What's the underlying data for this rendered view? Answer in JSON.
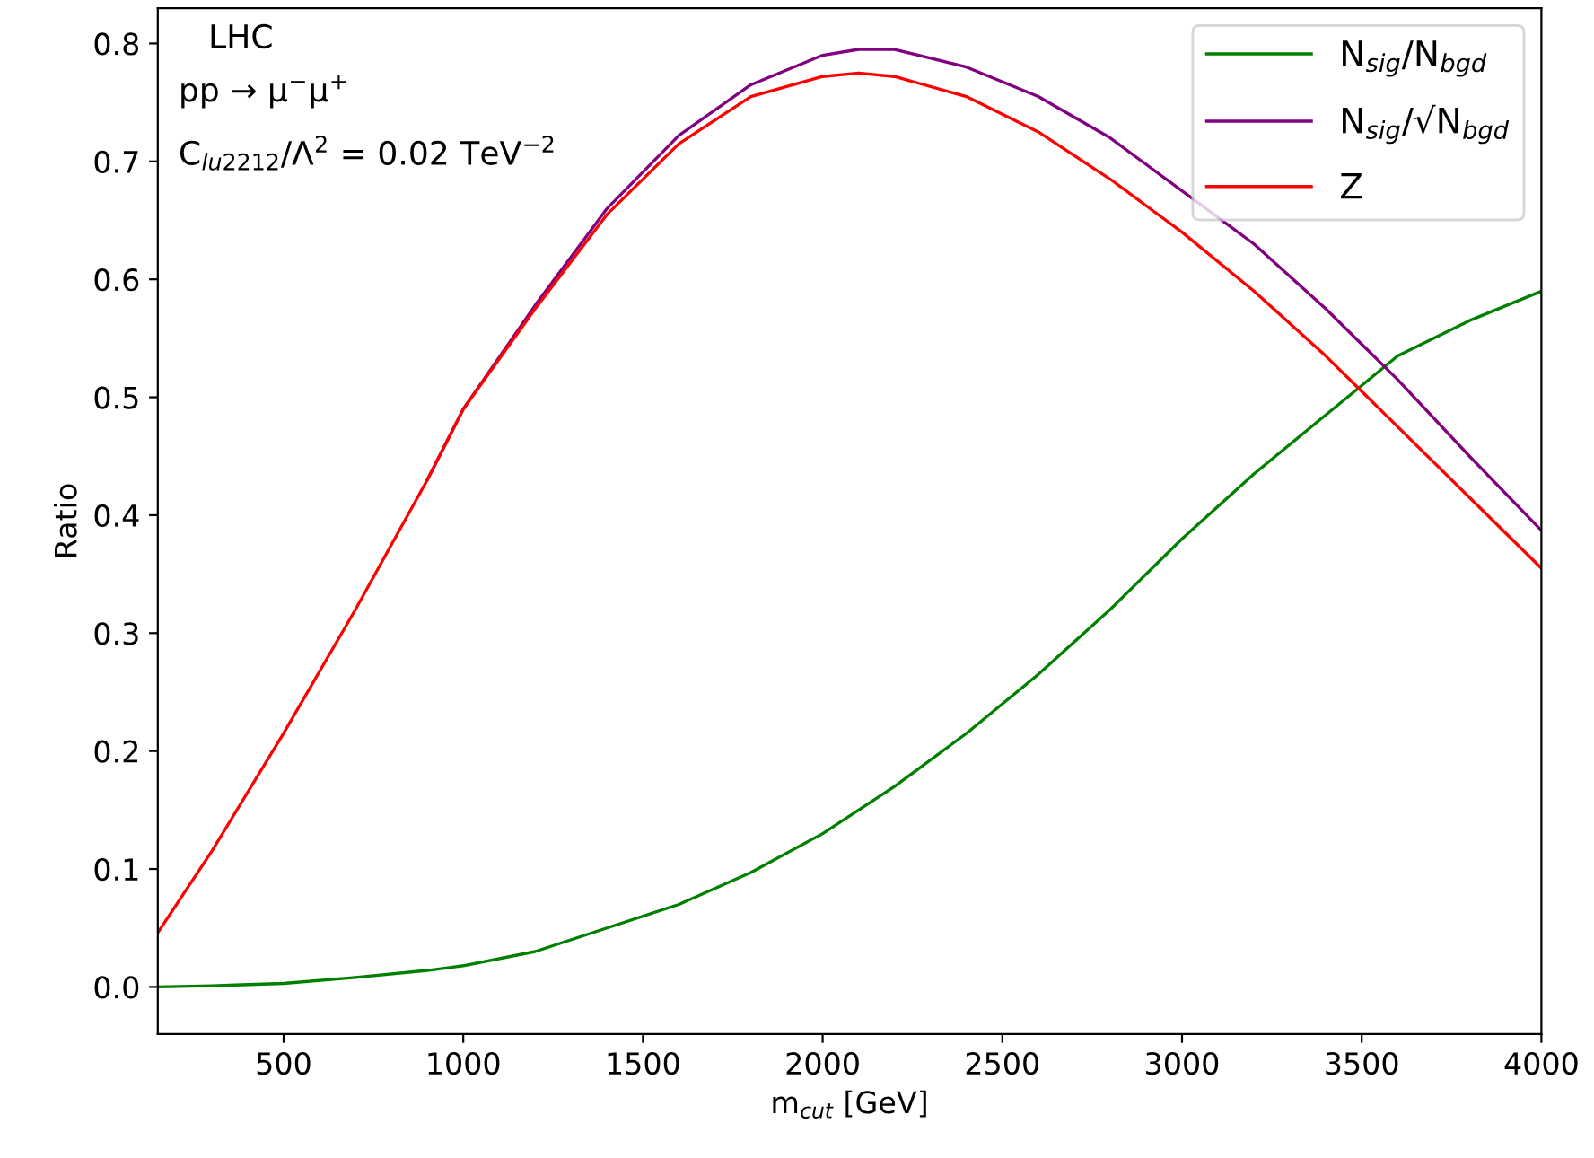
{
  "chart_data": {
    "type": "line",
    "xlabel": "m$_{cut}$ [GeV]",
    "ylabel": "Ratio",
    "annotations": [
      "LHC",
      "pp → μ$^{−}$μ$^{+}$",
      "C$_{lu2212}$/Λ$^{2}$ = 0.02 TeV$^{−2}$"
    ],
    "x": [
      150,
      300,
      500,
      700,
      900,
      1000,
      1200,
      1400,
      1600,
      1800,
      2000,
      2100,
      2200,
      2400,
      2600,
      2800,
      3000,
      3200,
      3400,
      3500,
      3600,
      3800,
      4000
    ],
    "series": [
      {
        "name": "N$_{sig}$/N$_{bgd}$",
        "color": "#008000",
        "values": [
          0.0,
          0.001,
          0.003,
          0.008,
          0.014,
          0.018,
          0.03,
          0.05,
          0.07,
          0.097,
          0.13,
          0.15,
          0.17,
          0.215,
          0.265,
          0.32,
          0.38,
          0.435,
          0.485,
          0.51,
          0.535,
          0.565,
          0.59
        ]
      },
      {
        "name": "N$_{sig}$/√N$_{bgd}$",
        "color": "#800080",
        "values": [
          null,
          null,
          null,
          null,
          0.43,
          0.49,
          0.578,
          0.66,
          0.722,
          0.765,
          0.79,
          0.795,
          0.795,
          0.78,
          0.755,
          0.72,
          0.675,
          0.63,
          0.575,
          0.545,
          0.515,
          0.45,
          0.387
        ]
      },
      {
        "name": "Z",
        "color": "#ff0000",
        "values": [
          0.046,
          0.115,
          0.215,
          0.32,
          0.43,
          0.49,
          0.575,
          0.655,
          0.715,
          0.755,
          0.772,
          0.775,
          0.772,
          0.755,
          0.725,
          0.685,
          0.64,
          0.59,
          0.535,
          0.505,
          0.475,
          0.415,
          0.355
        ]
      }
    ],
    "xlim": [
      150,
      4000
    ],
    "ylim": [
      -0.04,
      0.83
    ],
    "xticks": [
      500,
      1000,
      1500,
      2000,
      2500,
      3000,
      3500,
      4000
    ],
    "yticks": [
      {
        "value": 0,
        "label": "0.0"
      },
      0.1,
      0.2,
      0.3,
      0.4,
      0.5,
      0.6,
      0.7,
      0.8
    ],
    "grid": false,
    "legend": "top right"
  }
}
